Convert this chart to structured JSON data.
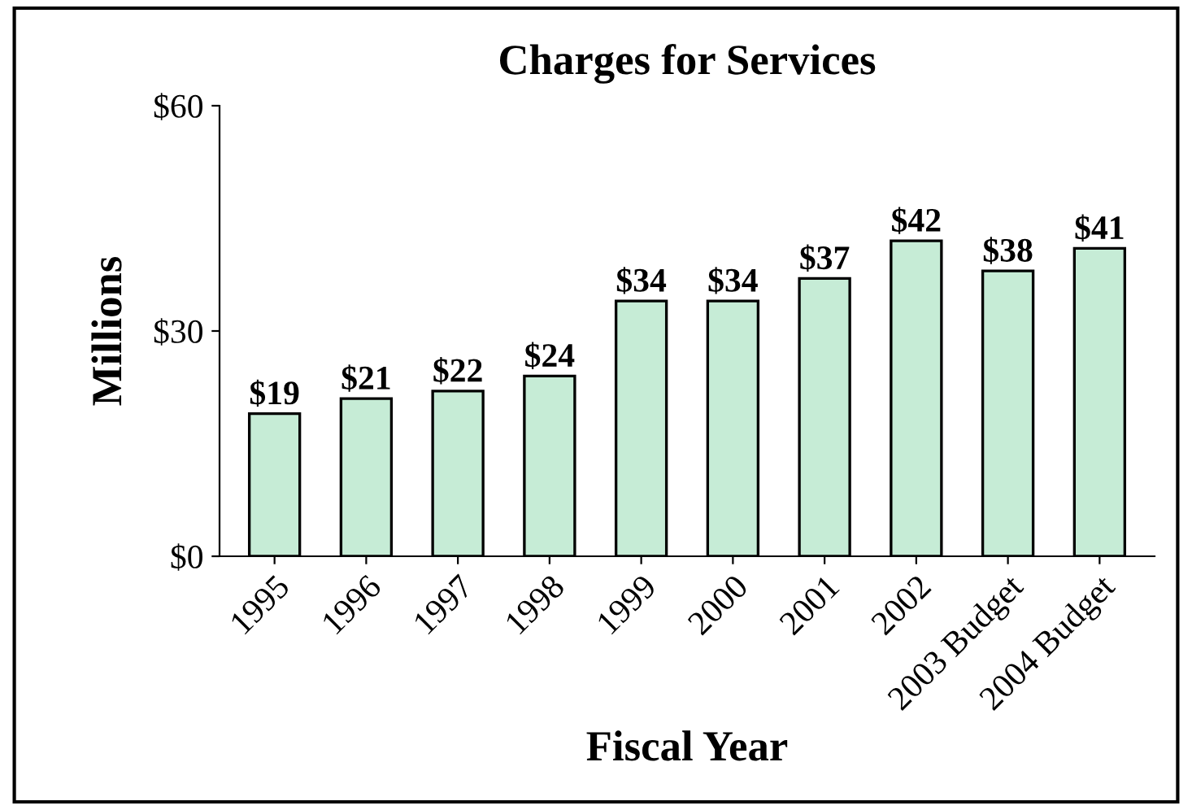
{
  "chart_data": {
    "type": "bar",
    "title": "Charges for Services",
    "xlabel": "Fiscal Year",
    "ylabel": "Millions",
    "categories": [
      "1995",
      "1996",
      "1997",
      "1998",
      "1999",
      "2000",
      "2001",
      "2002",
      "2003 Budget",
      "2004 Budget"
    ],
    "values": [
      19,
      21,
      22,
      24,
      34,
      34,
      37,
      42,
      38,
      41
    ],
    "value_labels": [
      "$19",
      "$21",
      "$22",
      "$24",
      "$34",
      "$34",
      "$37",
      "$42",
      "$38",
      "$41"
    ],
    "color": "#c6ecd6",
    "ylim": [
      0,
      60
    ],
    "yticks": [
      {
        "value": 0,
        "label": "$0"
      },
      {
        "value": 30,
        "label": "$30"
      },
      {
        "value": 60,
        "label": "$60"
      }
    ],
    "grid": false,
    "legend": false
  }
}
